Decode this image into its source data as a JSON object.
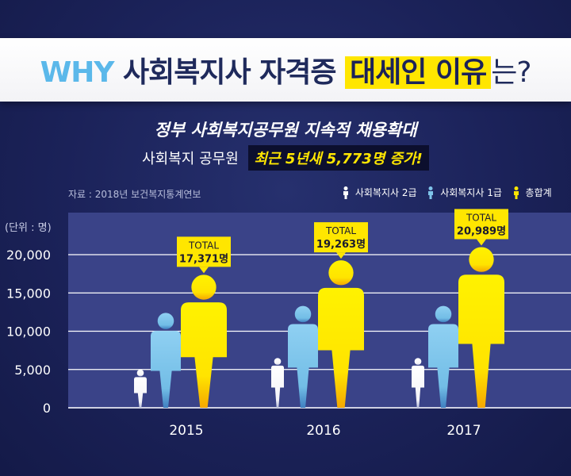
{
  "header": {
    "title_part1": "WHY",
    "title_part2": "사회복지사 자격증",
    "title_part3": "대세인 이유",
    "title_part4": "는?",
    "subtitle1": "정부 사회복지공무원 지속적 채용확대",
    "subtitle2_plain": "사회복지 공무원",
    "subtitle2_highlight": "최근 5년새 5,773명 증가!"
  },
  "source": "자료 : 2018년 보건복지통계연보",
  "legend": [
    {
      "label": "사회복지사 2급",
      "color": "#ffffff",
      "icon": "person-icon"
    },
    {
      "label": "사회복지사 1급",
      "color": "#7fc4ea",
      "icon": "person-icon"
    },
    {
      "label": "총합계",
      "color": "#ffe600",
      "icon": "person-icon"
    }
  ],
  "colors": {
    "background": "#1b2259",
    "plot_area": "#3a4388",
    "accent_yellow": "#ffe600",
    "accent_blue": "#7fc4ea"
  },
  "chart_data": {
    "type": "bar",
    "unit_label": "(단위 : 명)",
    "categories": [
      "2015",
      "2016",
      "2017"
    ],
    "series": [
      {
        "name": "사회복지사 2급",
        "values": [
          5000,
          6500,
          6500
        ]
      },
      {
        "name": "사회복지사 1급",
        "values": [
          12400,
          13300,
          13300
        ]
      },
      {
        "name": "총합계",
        "values": [
          17371,
          19263,
          20989
        ]
      }
    ],
    "callouts": [
      {
        "label": "TOTAL",
        "value": "17,371명"
      },
      {
        "label": "TOTAL",
        "value": "19,263명"
      },
      {
        "label": "TOTAL",
        "value": "20,989명"
      }
    ],
    "yticks": [
      0,
      5000,
      10000,
      15000,
      20000
    ],
    "ytick_labels": [
      "0",
      "5,000",
      "10,000",
      "15,000",
      "20,000"
    ],
    "ylim": [
      0,
      20000
    ],
    "grid": true
  }
}
